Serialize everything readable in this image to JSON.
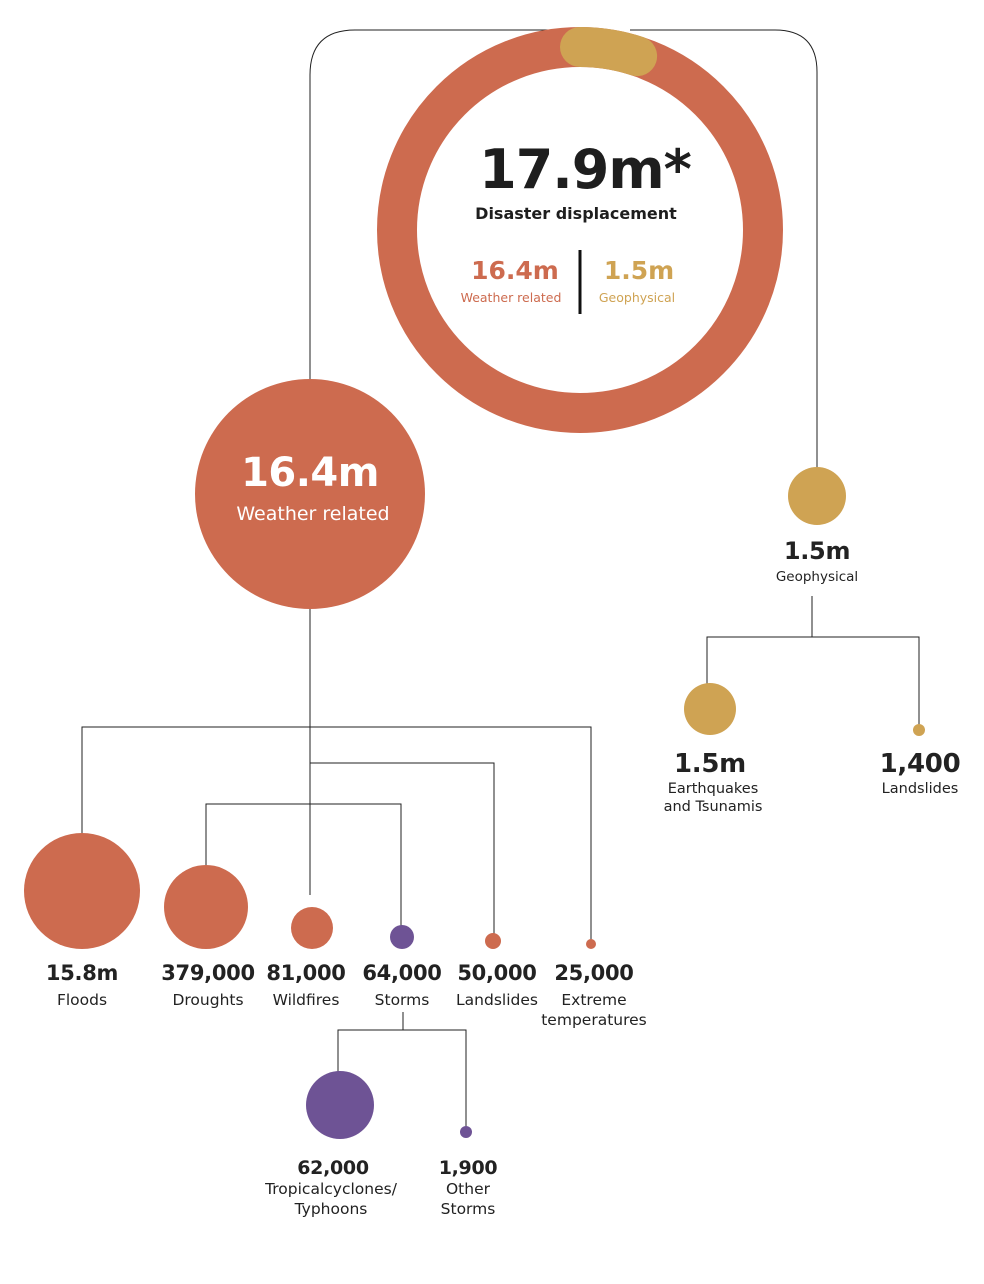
{
  "colors": {
    "weather": "#cd6b4f",
    "geophysical": "#cfa353",
    "storms": "#6e5395",
    "line": "#222222"
  },
  "total": {
    "value": "17.9m*",
    "label": "Disaster displacement",
    "weather_value": "16.4m",
    "weather_label": "Weather related",
    "geo_value": "1.5m",
    "geo_label": "Geophysical",
    "weather_share": 16.4,
    "geo_share": 1.5
  },
  "weather": {
    "value": "16.4m",
    "label": "Weather related",
    "children": [
      {
        "value": "15.8m",
        "label": "Floods"
      },
      {
        "value": "379,000",
        "label": "Droughts"
      },
      {
        "value": "81,000",
        "label": "Wildfires"
      },
      {
        "value": "64,000",
        "label": "Storms"
      },
      {
        "value": "50,000",
        "label": "Landslides"
      },
      {
        "value": "25,000",
        "label_line1": "Extreme",
        "label_line2": "temperatures"
      }
    ]
  },
  "storms": {
    "children": [
      {
        "value": "62,000",
        "label_line1": "Tropicalcyclones/",
        "label_line2": "Typhoons"
      },
      {
        "value": "1,900",
        "label_line1": "Other",
        "label_line2": "Storms"
      }
    ]
  },
  "geophysical": {
    "value": "1.5m",
    "label": "Geophysical",
    "children": [
      {
        "value": "1.5m",
        "label_line1": "Earthquakes",
        "label_line2": "and Tsunamis"
      },
      {
        "value": "1,400",
        "label": "Landslides"
      }
    ]
  }
}
